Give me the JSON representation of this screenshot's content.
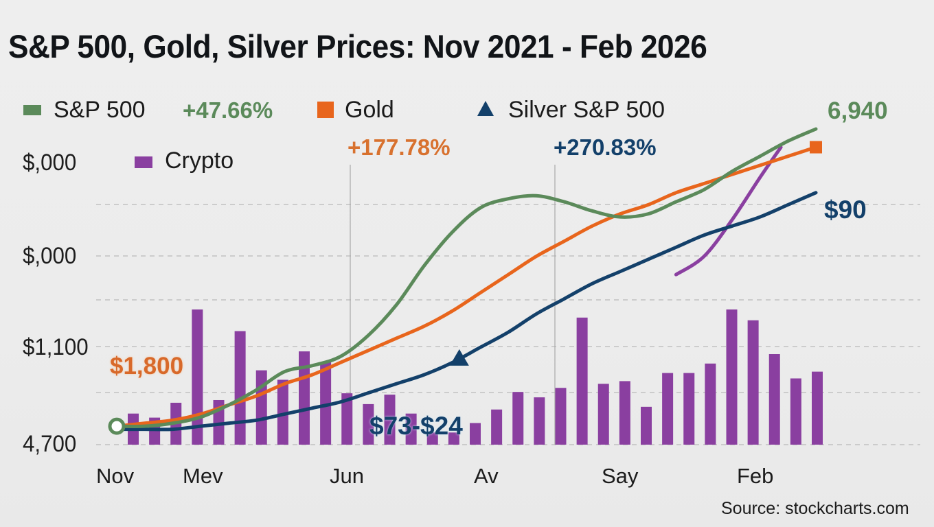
{
  "chart_data": {
    "type": "line",
    "title": "S&P 500, Gold, Silver Prices: Nov 2021 - Feb 2026",
    "xlabel": "",
    "ylabel": "",
    "x_tick_labels": [
      "Nov",
      "Mev",
      "Jun",
      "Av",
      "Say",
      "Feb"
    ],
    "y_tick_labels": [
      "$,000",
      "$,000",
      "$1,100",
      "4,700"
    ],
    "grid": true,
    "legend": {
      "placement": "top-left",
      "entries": [
        {
          "name": "S&P 500",
          "marker": "square",
          "color": "#5b8a5a",
          "change": "+47.66%"
        },
        {
          "name": "Gold",
          "marker": "square",
          "color": "#e8651c",
          "change": "+177.78%"
        },
        {
          "name": "Silver S&P 500",
          "marker": "triangle",
          "color": "#13406a",
          "change": "+270.83%"
        },
        {
          "name": "Crypto",
          "marker": "square",
          "color": "#8a3fa0"
        }
      ]
    },
    "annotations": {
      "sp500_end": "6,940",
      "gold_start": "$1,800",
      "silver_mid": "$73-$24",
      "silver_end": "$90"
    },
    "source": "Source: stockcharts.com",
    "y_index_range": [
      0,
      100
    ],
    "series": [
      {
        "name": "S&P 500",
        "color": "#5b8a5a",
        "x": [
          0,
          4,
          8,
          12,
          16,
          20,
          24,
          28,
          32,
          36,
          40,
          44,
          48,
          52,
          56,
          60,
          64,
          68,
          72,
          76,
          80,
          84,
          88,
          92,
          96,
          100
        ],
        "values": [
          2,
          2,
          3,
          5,
          9,
          14,
          20,
          22,
          25,
          32,
          42,
          55,
          66,
          74,
          77,
          78,
          76,
          73,
          71,
          72,
          76,
          80,
          86,
          91,
          96,
          100
        ]
      },
      {
        "name": "Gold",
        "color": "#e8651c",
        "x": [
          0,
          4,
          8,
          12,
          16,
          20,
          24,
          28,
          32,
          36,
          40,
          44,
          48,
          52,
          56,
          60,
          64,
          68,
          72,
          76,
          80,
          84,
          88,
          92,
          96,
          100
        ],
        "values": [
          2,
          3,
          4,
          6,
          9,
          12,
          16,
          19,
          23,
          27,
          31,
          35,
          40,
          46,
          52,
          58,
          63,
          68,
          72,
          75,
          79,
          82,
          85,
          88,
          91,
          94
        ]
      },
      {
        "name": "Silver",
        "color": "#13406a",
        "x": [
          0,
          4,
          8,
          12,
          16,
          20,
          24,
          28,
          32,
          36,
          40,
          44,
          48,
          52,
          56,
          60,
          64,
          68,
          72,
          76,
          80,
          84,
          88,
          92,
          96,
          100
        ],
        "values": [
          1,
          1,
          1,
          2,
          3,
          4,
          6,
          8,
          10,
          13,
          16,
          19,
          23,
          28,
          33,
          39,
          44,
          49,
          53,
          57,
          61,
          65,
          68,
          71,
          75,
          79
        ]
      },
      {
        "name": "Crypto",
        "color": "#8a3fa0",
        "x": [
          80,
          84,
          88,
          92,
          95
        ],
        "values": [
          52,
          58,
          70,
          84,
          94
        ]
      }
    ],
    "bars": {
      "name": "Crypto",
      "color": "#8a3fa0",
      "unit": "relative volume index",
      "values": [
        23,
        20,
        31,
        100,
        33,
        84,
        55,
        48,
        69,
        61,
        38,
        30,
        37,
        23,
        9,
        9,
        16,
        26,
        39,
        35,
        42,
        94,
        45,
        47,
        28,
        53,
        53,
        60,
        100,
        92,
        67,
        49,
        54
      ]
    },
    "markers": [
      {
        "series": "S&P 500",
        "type": "open-circle",
        "x": 0,
        "color": "#5b8a5a"
      },
      {
        "series": "Silver",
        "type": "triangle",
        "x": 49,
        "color": "#13406a"
      },
      {
        "series": "Gold",
        "type": "square",
        "x": 100,
        "color": "#e8651c"
      }
    ]
  }
}
